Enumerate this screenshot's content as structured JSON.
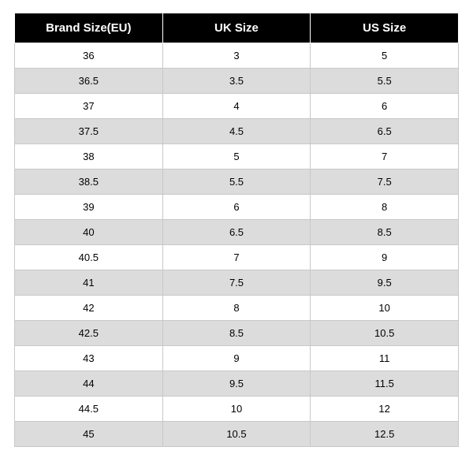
{
  "table": {
    "type": "table",
    "columns": [
      "Brand Size(EU)",
      "UK Size",
      "US Size"
    ],
    "rows": [
      [
        "36",
        "3",
        "5"
      ],
      [
        "36.5",
        "3.5",
        "5.5"
      ],
      [
        "37",
        "4",
        "6"
      ],
      [
        "37.5",
        "4.5",
        "6.5"
      ],
      [
        "38",
        "5",
        "7"
      ],
      [
        "38.5",
        "5.5",
        "7.5"
      ],
      [
        "39",
        "6",
        "8"
      ],
      [
        "40",
        "6.5",
        "8.5"
      ],
      [
        "40.5",
        "7",
        "9"
      ],
      [
        "41",
        "7.5",
        "9.5"
      ],
      [
        "42",
        "8",
        "10"
      ],
      [
        "42.5",
        "8.5",
        "10.5"
      ],
      [
        "43",
        "9",
        "11"
      ],
      [
        "44",
        "9.5",
        "11.5"
      ],
      [
        "44.5",
        "10",
        "12"
      ],
      [
        "45",
        "10.5",
        "12.5"
      ]
    ],
    "header_bg": "#000000",
    "header_text_color": "#ffffff",
    "header_fontsize": 15,
    "header_font_weight": "bold",
    "cell_fontsize": 13,
    "row_colors": [
      "#ffffff",
      "#dcdcdc"
    ],
    "border_color": "#c8c8c8",
    "column_align": [
      "center",
      "center",
      "center"
    ]
  }
}
